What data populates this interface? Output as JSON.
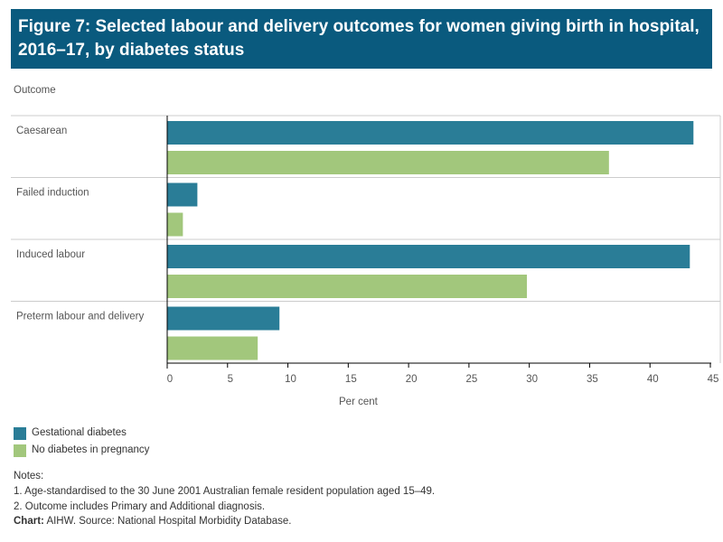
{
  "title": "Figure 7: Selected labour and delivery outcomes for women giving birth in hospital, 2016–17, by diabetes status",
  "chart_data": {
    "type": "bar",
    "orientation": "horizontal",
    "ylabel": "Outcome",
    "xlabel": "Per cent",
    "categories": [
      "Caesarean",
      "Failed induction",
      "Induced labour",
      "Preterm labour and delivery"
    ],
    "series": [
      {
        "name": "Gestational diabetes",
        "color": "#2a7d97",
        "values": [
          43.6,
          2.5,
          43.3,
          9.3
        ]
      },
      {
        "name": "No diabetes in pregnancy",
        "color": "#a2c77c",
        "values": [
          36.6,
          1.3,
          29.8,
          7.5
        ]
      }
    ],
    "xlim": [
      0,
      45
    ],
    "xticks": [
      "0",
      "5",
      "10",
      "15",
      "20",
      "25",
      "30",
      "35",
      "40",
      "45"
    ],
    "grid": false,
    "legend": "bottom-left"
  },
  "notes": {
    "heading": "Notes:",
    "items": [
      "1. Age-standardised to the 30 June 2001 Australian female resident population aged 15–49.",
      "2. Outcome includes Primary and Additional diagnosis."
    ],
    "source_label": "Chart:",
    "source": "AIHW. Source: National Hospital Morbidity Database."
  }
}
